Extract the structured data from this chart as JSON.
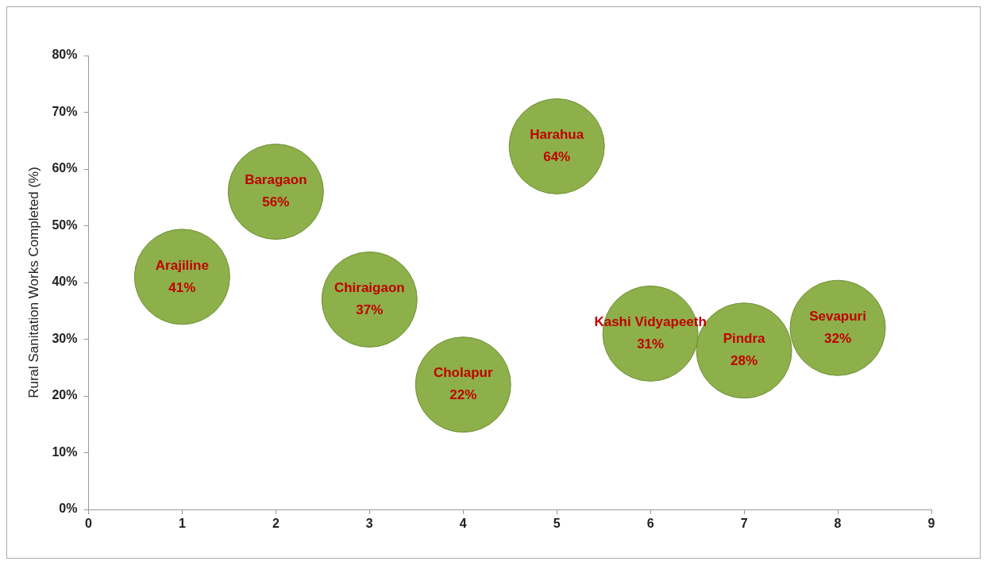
{
  "chart_data": {
    "type": "bubble",
    "ylabel": "Rural Sanitation Works Completed (%)",
    "xlim": [
      0,
      9
    ],
    "xticks": [
      0,
      1,
      2,
      3,
      4,
      5,
      6,
      7,
      8,
      9
    ],
    "ylim": [
      0,
      80
    ],
    "yticks": [
      {
        "value": 0,
        "label": "0%"
      },
      {
        "value": 10,
        "label": "10%"
      },
      {
        "value": 20,
        "label": "20%"
      },
      {
        "value": 30,
        "label": "30%"
      },
      {
        "value": 40,
        "label": "40%"
      },
      {
        "value": 50,
        "label": "50%"
      },
      {
        "value": 60,
        "label": "60%"
      },
      {
        "value": 70,
        "label": "70%"
      },
      {
        "value": 80,
        "label": "80%"
      }
    ],
    "grid": false,
    "legend": false,
    "series": [
      {
        "name": "Arajiline",
        "color": "#8db04a",
        "x": [
          1
        ],
        "values": [
          41
        ],
        "sizes": [
          1
        ],
        "value_labels": [
          "41%"
        ]
      },
      {
        "name": "Baragaon",
        "color": "#8db04a",
        "x": [
          2
        ],
        "values": [
          56
        ],
        "sizes": [
          1
        ],
        "value_labels": [
          "56%"
        ]
      },
      {
        "name": "Chiraigaon",
        "color": "#8db04a",
        "x": [
          3
        ],
        "values": [
          37
        ],
        "sizes": [
          1
        ],
        "value_labels": [
          "37%"
        ]
      },
      {
        "name": "Cholapur",
        "color": "#8db04a",
        "x": [
          4
        ],
        "values": [
          22
        ],
        "sizes": [
          1
        ],
        "value_labels": [
          "22%"
        ]
      },
      {
        "name": "Harahua",
        "color": "#8db04a",
        "x": [
          5
        ],
        "values": [
          64
        ],
        "sizes": [
          1
        ],
        "value_labels": [
          "64%"
        ]
      },
      {
        "name": "Kashi Vidyapeeth",
        "color": "#8db04a",
        "x": [
          6
        ],
        "values": [
          31
        ],
        "sizes": [
          1
        ],
        "value_labels": [
          "31%"
        ]
      },
      {
        "name": "Pindra",
        "color": "#8db04a",
        "x": [
          7
        ],
        "values": [
          28
        ],
        "sizes": [
          1
        ],
        "value_labels": [
          "28%"
        ]
      },
      {
        "name": "Sevapuri",
        "color": "#8db04a",
        "x": [
          8
        ],
        "values": [
          32
        ],
        "sizes": [
          1
        ],
        "value_labels": [
          "32%"
        ]
      }
    ]
  }
}
